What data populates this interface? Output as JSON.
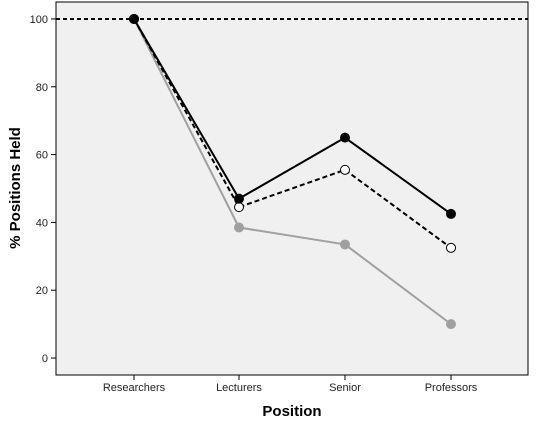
{
  "chart_data": {
    "type": "line",
    "title": "",
    "xlabel": "Position",
    "ylabel": "% Positions Held",
    "categories": [
      "Researchers",
      "Lecturers",
      "Senior",
      "Professors"
    ],
    "ylim": [
      -5,
      105
    ],
    "yticks": [
      0,
      20,
      40,
      60,
      80,
      100
    ],
    "grid": false,
    "legend": "none",
    "plot_background": "#f0f0f0",
    "reference_lines": [
      {
        "y": 100,
        "style": "dashed",
        "color": "#000000"
      }
    ],
    "series": [
      {
        "values": [
          100,
          47,
          65,
          42.5
        ],
        "color": "#000000",
        "line_style": "solid",
        "marker": "filled-circle"
      },
      {
        "values": [
          100,
          44.5,
          55.5,
          32.5
        ],
        "color": "#000000",
        "line_style": "dashed",
        "marker": "open-circle"
      },
      {
        "values": [
          100,
          38.5,
          33.5,
          10
        ],
        "color": "#a0a0a0",
        "line_style": "solid",
        "marker": "filled-circle"
      }
    ]
  }
}
